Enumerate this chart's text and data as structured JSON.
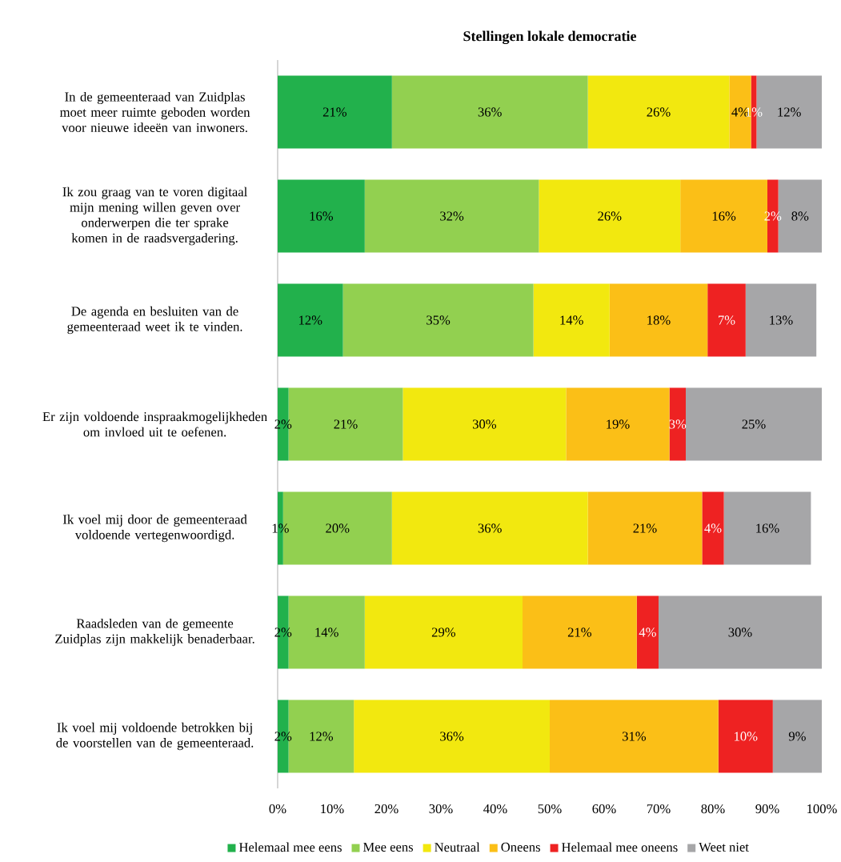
{
  "chart_data": {
    "type": "bar",
    "orientation": "horizontal",
    "stacked": true,
    "title": "Stellingen lokale democratie",
    "categories": [
      "In de gemeenteraad van Zuidplas moet meer ruimte geboden worden voor nieuwe ideeën van inwoners.",
      "Ik zou graag van te voren digitaal mijn mening willen geven over onderwerpen die ter sprake komen in de raadsvergadering.",
      "De agenda en besluiten van de gemeenteraad weet ik te vinden.",
      "Er zijn voldoende inspraakmogelijkheden om invloed uit te oefenen.",
      "Ik voel mij door de gemeenteraad voldoende vertegenwoordigd.",
      "Raadsleden van de gemeente Zuidplas zijn makkelijk benaderbaar.",
      "Ik voel mij voldoende betrokken bij de voorstellen van de gemeenteraad."
    ],
    "series": [
      {
        "name": "Helemaal mee eens",
        "color": "#22b14c",
        "values": [
          21,
          16,
          12,
          2,
          1,
          2,
          2
        ],
        "value_labels": [
          "21%",
          "16%",
          "12%",
          "2%",
          "1%",
          "2%",
          "2%"
        ]
      },
      {
        "name": "Mee eens",
        "color": "#92d050",
        "values": [
          36,
          32,
          35,
          21,
          20,
          14,
          12
        ],
        "value_labels": [
          "36%",
          "32%",
          "35%",
          "21%",
          "20%",
          "14%",
          "12%"
        ]
      },
      {
        "name": "Neutraal",
        "color": "#f2e80f",
        "values": [
          26,
          26,
          14,
          30,
          36,
          29,
          36
        ],
        "value_labels": [
          "26%",
          "26%",
          "14%",
          "30%",
          "36%",
          "29%",
          "36%"
        ]
      },
      {
        "name": "Oneens",
        "color": "#fbbf17",
        "values": [
          4,
          16,
          18,
          19,
          21,
          21,
          31
        ],
        "value_labels": [
          "4%",
          "16%",
          "18%",
          "19%",
          "21%",
          "21%",
          "31%"
        ]
      },
      {
        "name": "Helemaal mee oneens",
        "color": "#ee2222",
        "values": [
          1,
          2,
          7,
          3,
          4,
          4,
          10
        ],
        "value_labels": [
          "1%",
          "2%",
          "7%",
          "3%",
          "4%",
          "4%",
          "10%"
        ]
      },
      {
        "name": "Weet niet",
        "color": "#a6a6a8",
        "values": [
          12,
          8,
          13,
          25,
          16,
          30,
          9
        ],
        "value_labels": [
          "12%",
          "8%",
          "13%",
          "25%",
          "16%",
          "30%",
          "9%"
        ]
      }
    ],
    "xlim": [
      0,
      100
    ],
    "xticks": [
      {
        "value": 0,
        "label": "0%"
      },
      {
        "value": 10,
        "label": "10%"
      },
      {
        "value": 20,
        "label": "20%"
      },
      {
        "value": 30,
        "label": "30%"
      },
      {
        "value": 40,
        "label": "40%"
      },
      {
        "value": 50,
        "label": "50%"
      },
      {
        "value": 60,
        "label": "60%"
      },
      {
        "value": 70,
        "label": "70%"
      },
      {
        "value": 80,
        "label": "80%"
      },
      {
        "value": 90,
        "label": "90%"
      },
      {
        "value": 100,
        "label": "100%"
      }
    ],
    "legend": "bottom"
  }
}
